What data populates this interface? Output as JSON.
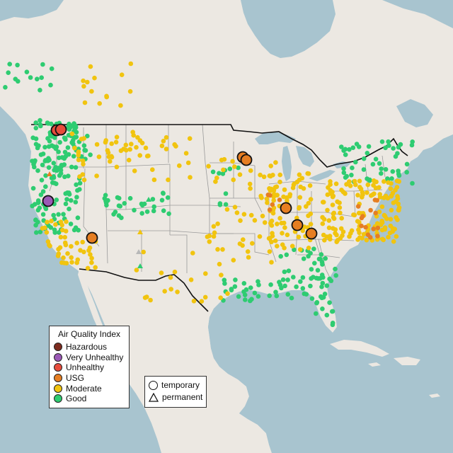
{
  "legend_aqi": {
    "title": "Air Quality Index",
    "items": [
      {
        "label": "Hazardous",
        "color": "#7e2c1f"
      },
      {
        "label": "Very Unhealthy",
        "color": "#9b59b6"
      },
      {
        "label": "Unhealthy",
        "color": "#e74c3c"
      },
      {
        "label": "USG",
        "color": "#e67e22"
      },
      {
        "label": "Moderate",
        "color": "#f1c40f"
      },
      {
        "label": "Good",
        "color": "#2ecc71"
      }
    ]
  },
  "legend_type": {
    "items": [
      {
        "label": "temporary",
        "icon": "circle-icon"
      },
      {
        "label": "permanent",
        "icon": "triangle-icon"
      }
    ]
  },
  "colors": {
    "land": "#ece8e2",
    "water": "#a8c4cf",
    "border": "#111111",
    "state_lines": "#9a9a9a",
    "good": "#2ecc71",
    "moderate": "#f1c40f",
    "usg": "#e67e22",
    "unhealthy": "#e74c3c",
    "very_unhealthy": "#9b59b6",
    "no_data": "#b8b8b8"
  }
}
